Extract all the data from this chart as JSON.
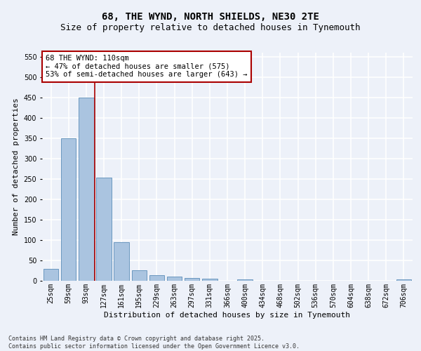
{
  "title_line1": "68, THE WYND, NORTH SHIELDS, NE30 2TE",
  "title_line2": "Size of property relative to detached houses in Tynemouth",
  "xlabel": "Distribution of detached houses by size in Tynemouth",
  "ylabel": "Number of detached properties",
  "categories": [
    "25sqm",
    "59sqm",
    "93sqm",
    "127sqm",
    "161sqm",
    "195sqm",
    "229sqm",
    "263sqm",
    "297sqm",
    "331sqm",
    "366sqm",
    "400sqm",
    "434sqm",
    "468sqm",
    "502sqm",
    "536sqm",
    "570sqm",
    "604sqm",
    "638sqm",
    "672sqm",
    "706sqm"
  ],
  "values": [
    30,
    350,
    450,
    253,
    95,
    25,
    13,
    10,
    7,
    5,
    0,
    4,
    0,
    0,
    0,
    0,
    0,
    0,
    0,
    0,
    4
  ],
  "bar_color": "#aac4e0",
  "bar_edge_color": "#5b8db8",
  "vline_color": "#aa0000",
  "annotation_box_text": "68 THE WYND: 110sqm\n← 47% of detached houses are smaller (575)\n53% of semi-detached houses are larger (643) →",
  "ylim": [
    0,
    560
  ],
  "yticks": [
    0,
    50,
    100,
    150,
    200,
    250,
    300,
    350,
    400,
    450,
    500,
    550
  ],
  "background_color": "#edf1f9",
  "grid_color": "#ffffff",
  "footer_text": "Contains HM Land Registry data © Crown copyright and database right 2025.\nContains public sector information licensed under the Open Government Licence v3.0.",
  "title_fontsize": 10,
  "subtitle_fontsize": 9,
  "axis_label_fontsize": 8,
  "tick_fontsize": 7,
  "annotation_fontsize": 7.5,
  "footer_fontsize": 6
}
